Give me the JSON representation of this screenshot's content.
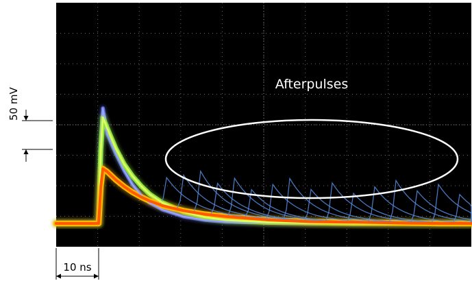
{
  "chart_data": {
    "type": "line",
    "annotation": "Afterpulses",
    "scale": {
      "vertical_label": "50 mV",
      "horizontal_label": "10 ns"
    },
    "x_unit": "ns",
    "y_unit": "mV",
    "grid": true,
    "x": [
      -12,
      -6,
      0,
      0.5,
      1,
      2,
      4,
      6,
      8,
      10,
      12,
      15,
      20,
      25,
      30,
      40,
      50,
      60,
      70,
      80,
      90
    ],
    "series": [
      {
        "values": [
          0,
          0,
          0,
          144,
          200,
          156,
          122,
          92,
          67,
          49,
          36,
          24,
          12,
          6,
          3,
          1,
          0,
          0,
          0,
          0,
          0
        ]
      },
      {
        "values": [
          0,
          0,
          0,
          127,
          184,
          166,
          131,
          103,
          82,
          65,
          51,
          36,
          20,
          11,
          6,
          2,
          1,
          0,
          0,
          0,
          0
        ]
      },
      {
        "values": [
          0,
          0,
          0,
          64,
          95,
          90,
          76,
          64,
          54,
          46,
          39,
          31,
          22,
          16,
          12,
          6,
          3,
          2,
          1,
          0,
          0
        ]
      }
    ],
    "afterpulse_times": [
      15,
      19,
      23,
      27,
      31,
      35,
      40,
      44,
      49,
      54,
      59,
      64,
      69,
      74,
      79,
      84
    ]
  },
  "colors": {
    "background": "#000000",
    "grid": "#6a6a6a",
    "trace_peak": "#6070e0",
    "trace_mid": "#8fe040",
    "trace_main": "#ffb800",
    "annotation": "#ffffff"
  }
}
